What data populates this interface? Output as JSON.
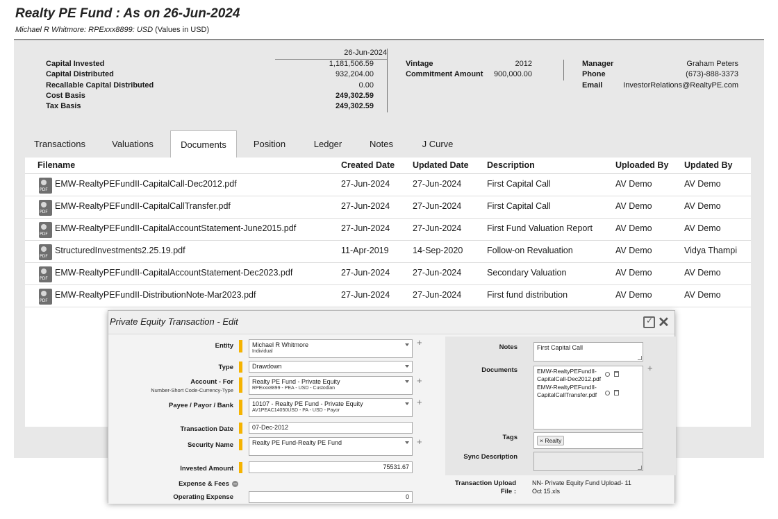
{
  "page": {
    "title": "Realty PE Fund : As on 26-Jun-2024",
    "subtitle_account": "Michael R Whitmore: RPExxx8899: USD",
    "subtitle_units": "(Values in USD)"
  },
  "summary": {
    "date": "26-Jun-2024",
    "financials": [
      {
        "label": "Capital Invested",
        "value": "1,181,506.59"
      },
      {
        "label": "Capital Distributed",
        "value": "932,204.00"
      },
      {
        "label": "Recallable Capital Distributed",
        "value": "0.00"
      },
      {
        "label": "Cost Basis",
        "value": "249,302.59"
      },
      {
        "label": "Tax Basis",
        "value": "249,302.59"
      }
    ],
    "fund": [
      {
        "label": "Vintage",
        "value": "2012"
      },
      {
        "label": "Commitment Amount",
        "value": "900,000.00"
      }
    ],
    "contact": [
      {
        "label": "Manager",
        "value": "Graham Peters"
      },
      {
        "label": "Phone",
        "value": "(673)-888-3373"
      },
      {
        "label": "Email",
        "value": "InvestorRelations@RealtyPE.com"
      }
    ]
  },
  "tabs": [
    "Transactions",
    "Valuations",
    "Documents",
    "Position",
    "Ledger",
    "Notes",
    "J Curve"
  ],
  "active_tab": "Documents",
  "documents": {
    "columns": [
      "Filename",
      "Created Date",
      "Updated Date",
      "Description",
      "Uploaded By",
      "Updated By"
    ],
    "rows": [
      {
        "filename": "EMW-RealtyPEFundII-CapitalCall-Dec2012.pdf",
        "created": "27-Jun-2024",
        "updated": "27-Jun-2024",
        "description": "First Capital Call",
        "uploaded_by": "AV Demo",
        "updated_by": "AV Demo"
      },
      {
        "filename": "EMW-RealtyPEFundII-CapitalCallTransfer.pdf",
        "created": "27-Jun-2024",
        "updated": "27-Jun-2024",
        "description": "First Capital Call",
        "uploaded_by": "AV Demo",
        "updated_by": "AV Demo"
      },
      {
        "filename": "EMW-RealtyPEFundII-CapitalAccountStatement-June2015.pdf",
        "created": "27-Jun-2024",
        "updated": "27-Jun-2024",
        "description": "First Fund Valuation Report",
        "uploaded_by": "AV Demo",
        "updated_by": "AV Demo"
      },
      {
        "filename": "StructuredInvestments2.25.19.pdf",
        "created": "11-Apr-2019",
        "updated": "14-Sep-2020",
        "description": "Follow-on Revaluation",
        "uploaded_by": "AV Demo",
        "updated_by": "Vidya Thampi"
      },
      {
        "filename": "EMW-RealtyPEFundII-CapitalAccountStatement-Dec2023.pdf",
        "created": "27-Jun-2024",
        "updated": "27-Jun-2024",
        "description": "Secondary Valuation",
        "uploaded_by": "AV Demo",
        "updated_by": "AV Demo"
      },
      {
        "filename": "EMW-RealtyPEFundII-DistributionNote-Mar2023.pdf",
        "created": "27-Jun-2024",
        "updated": "27-Jun-2024",
        "description": "First fund distribution",
        "uploaded_by": "AV Demo",
        "updated_by": "AV Demo"
      }
    ]
  },
  "modal": {
    "title": "Private Equity Transaction - Edit",
    "entity": {
      "label": "Entity",
      "value": "Michael R Whitmore",
      "sub": "Individual"
    },
    "type": {
      "label": "Type",
      "value": "Drawdown"
    },
    "account": {
      "label": "Account - For",
      "label_sub": "Number-Short Code-Currency-Type",
      "value": "Realty PE Fund - Private Equity",
      "sub": "RPExxx8899 - PEA - USD - Custodian"
    },
    "payee": {
      "label": "Payee / Payor / Bank",
      "value": "10107 - Realty PE Fund - Private Equity",
      "sub": "AV1PEAC14050USD - PA - USD - Payor"
    },
    "transaction_date": {
      "label": "Transaction Date",
      "value": "07-Dec-2012"
    },
    "security": {
      "label": "Security Name",
      "value": "Realty PE Fund-Realty PE Fund"
    },
    "invested_amount": {
      "label": "Invested Amount",
      "value": "75531.67"
    },
    "expense_fees": {
      "label": "Expense & Fees"
    },
    "operating_expense": {
      "label": "Operating Expense",
      "value": "0"
    },
    "notes": {
      "label": "Notes",
      "value": "First Capital Call"
    },
    "documents": {
      "label": "Documents",
      "items": [
        "EMW-RealtyPEFundII-CapitalCall-Dec2012.pdf",
        "EMW-RealtyPEFundII-CapitalCallTransfer.pdf"
      ]
    },
    "tags": {
      "label": "Tags",
      "items": [
        "Realty"
      ]
    },
    "sync": {
      "label": "Sync Description",
      "value": ""
    },
    "upload": {
      "label_line1": "Transaction Upload",
      "label_line2": "File :",
      "value_line1": "NN- Private Equity Fund Upload- 11",
      "value_line2": "Oct 15.xls"
    }
  },
  "colors": {
    "required_marker": "#f5b300",
    "panel_bg": "#e8e8e8"
  }
}
